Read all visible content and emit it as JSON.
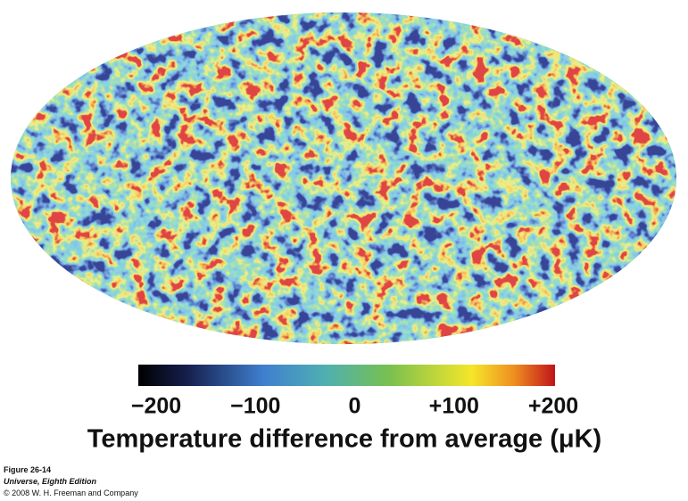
{
  "colorbar": {
    "lim": [
      -200,
      200
    ],
    "ticks": [
      {
        "value": -200,
        "label": "−200"
      },
      {
        "value": -100,
        "label": "−100"
      },
      {
        "value": 0,
        "label": "0"
      },
      {
        "value": 100,
        "label": "+100"
      },
      {
        "value": 200,
        "label": "+200"
      }
    ],
    "label": "Temperature difference from average (μK)"
  },
  "caption": {
    "figure": "Figure 26-14",
    "book": "Universe, Eighth Edition",
    "copyright": "© 2008 W. H. Freeman and Company"
  }
}
